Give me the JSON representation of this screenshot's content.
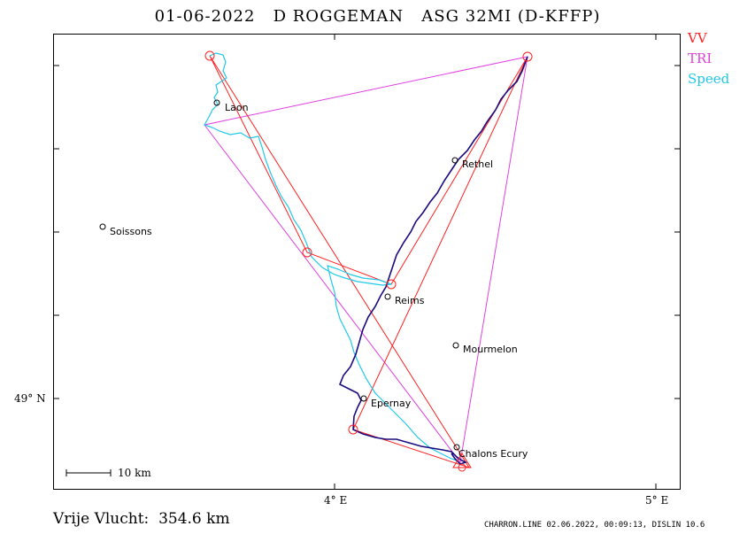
{
  "header": {
    "title": "01-06-2022   D ROGGEMAN   ASG 32MI (D-KFFP)"
  },
  "legend": [
    {
      "label": "VV",
      "color": "#ff2020"
    },
    {
      "label": "TRI",
      "color": "#e040e0"
    },
    {
      "label": "Speed",
      "color": "#20c8e8"
    }
  ],
  "axes": {
    "x_ticks": [
      "4° E",
      "5° E"
    ],
    "y_ticks": [
      "49° N"
    ]
  },
  "scale_bar": {
    "label": "10  km"
  },
  "places": [
    {
      "name": "Laon"
    },
    {
      "name": "Soissons"
    },
    {
      "name": "Rethel"
    },
    {
      "name": "Reims"
    },
    {
      "name": "Mourmelon"
    },
    {
      "name": "Epernay"
    },
    {
      "name": "Chalons Ecury"
    }
  ],
  "flight": {
    "distance_text": "Vrije Vlucht:  354.6 km"
  },
  "footer": {
    "text": "CHARRON.LINE 02.06.2022, 00:09:13, DISLIN 10.6"
  }
}
